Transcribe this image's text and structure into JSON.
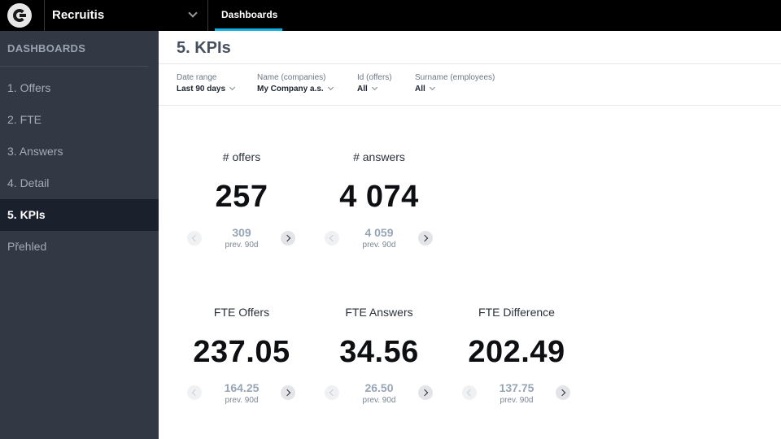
{
  "topbar": {
    "project_name": "Recruitis",
    "tab_label": "Dashboards",
    "accent_color": "#14b2e2"
  },
  "sidebar": {
    "heading": "DASHBOARDS",
    "items": [
      {
        "label": "1. Offers",
        "active": false
      },
      {
        "label": "2. FTE",
        "active": false
      },
      {
        "label": "3. Answers",
        "active": false
      },
      {
        "label": "4. Detail",
        "active": false
      },
      {
        "label": "5. KPIs",
        "active": true
      },
      {
        "label": "Přehled",
        "active": false
      }
    ]
  },
  "main": {
    "title": "5. KPIs",
    "filters": [
      {
        "label": "Date range",
        "value": "Last 90 days"
      },
      {
        "label": "Name (companies)",
        "value": "My Company a.s."
      },
      {
        "label": "Id (offers)",
        "value": "All"
      },
      {
        "label": "Surname (employees)",
        "value": "All"
      }
    ],
    "kpis": [
      {
        "title": "# offers",
        "value": "257",
        "prev_value": "309",
        "prev_label": "prev. 90d"
      },
      {
        "title": "# answers",
        "value": "4 074",
        "prev_value": "4 059",
        "prev_label": "prev. 90d"
      },
      {
        "title": "FTE Offers",
        "value": "237.05",
        "prev_value": "164.25",
        "prev_label": "prev. 90d"
      },
      {
        "title": "FTE Answers",
        "value": "34.56",
        "prev_value": "26.50",
        "prev_label": "prev. 90d"
      },
      {
        "title": "FTE Difference",
        "value": "202.49",
        "prev_value": "137.75",
        "prev_label": "prev. 90d"
      }
    ]
  }
}
